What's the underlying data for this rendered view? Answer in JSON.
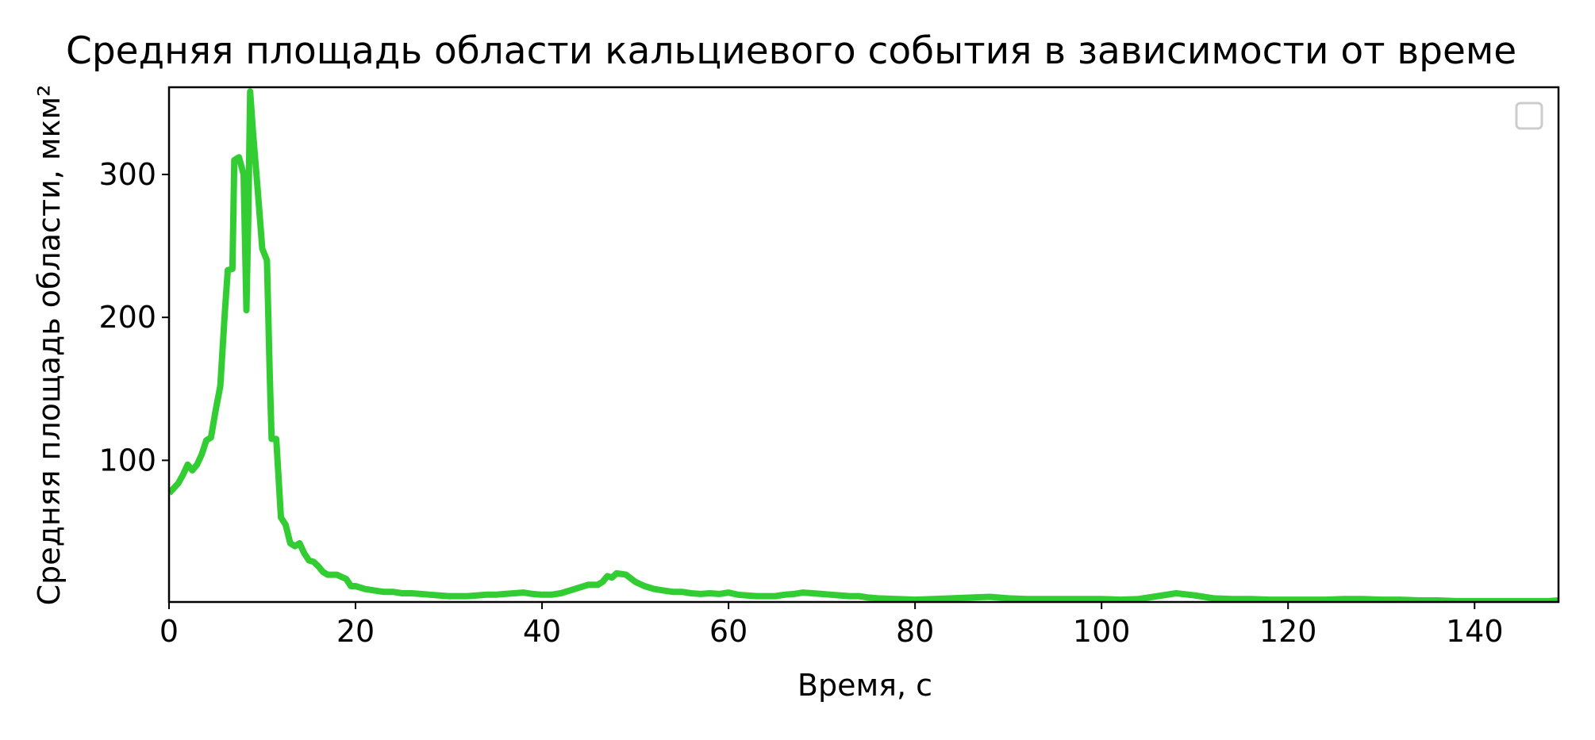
{
  "chart_data": {
    "type": "line",
    "title": "Средняя площадь области кальциевого события в зависимости от време",
    "x_label": "Время, с",
    "y_label": "Средняя площадь области, мкм²",
    "x": [
      0,
      1,
      1.5,
      2,
      2.5,
      3,
      3.5,
      4,
      4.5,
      5,
      5.5,
      6,
      6.3,
      6.8,
      7,
      7.5,
      8,
      8.3,
      8.5,
      8.7,
      9,
      9.5,
      10,
      10.5,
      10.8,
      11,
      11.5,
      12,
      12.5,
      13,
      13.5,
      14,
      14.5,
      15,
      15.5,
      16,
      16.5,
      17,
      18,
      19,
      19.5,
      20,
      21,
      22,
      23,
      24,
      25,
      26,
      27,
      28,
      29,
      30,
      31,
      32,
      33,
      34,
      35,
      36,
      37,
      38,
      39,
      40,
      41,
      42,
      43,
      44,
      45,
      46,
      46.5,
      47,
      47.5,
      48,
      49,
      50,
      51,
      52,
      53,
      54,
      55,
      56,
      57,
      58,
      59,
      60,
      61,
      62,
      63,
      64,
      65,
      66,
      67,
      68,
      69,
      70,
      71,
      72,
      73,
      74,
      75,
      76,
      78,
      80,
      82,
      84,
      86,
      88,
      90,
      92,
      94,
      96,
      98,
      100,
      102,
      104,
      106,
      108,
      110,
      112,
      114,
      116,
      118,
      120,
      122,
      124,
      126,
      128,
      130,
      132,
      134,
      136,
      138,
      140,
      142,
      144,
      146,
      148,
      149
    ],
    "series": [
      {
        "color": "#32cd32",
        "values": [
          77,
          84,
          90,
          97,
          93,
          97,
          104,
          114,
          116,
          135,
          152,
          205,
          233,
          234,
          310,
          312,
          300,
          205,
          270,
          358,
          330,
          290,
          248,
          240,
          160,
          115,
          115,
          60,
          55,
          42,
          40,
          42,
          35,
          30,
          29,
          26,
          22,
          20,
          20,
          17,
          12,
          12,
          10,
          9,
          8,
          8,
          7,
          7,
          6.5,
          6,
          5.5,
          5,
          5,
          5,
          5.5,
          6,
          6,
          6.5,
          7,
          7.5,
          6.5,
          6,
          6,
          7,
          9,
          11,
          13,
          13,
          15,
          19,
          18,
          21,
          20,
          15,
          12,
          10,
          9,
          8,
          8,
          7,
          6.5,
          7,
          6.5,
          7.5,
          6,
          5.5,
          5,
          5,
          5,
          6,
          6.5,
          7.5,
          7,
          6.5,
          6,
          5.5,
          5,
          5,
          4,
          3.5,
          3,
          2.5,
          3,
          3.5,
          4,
          4.5,
          3.5,
          3,
          3,
          3,
          3,
          3,
          2.5,
          3,
          5,
          7,
          5.5,
          3.5,
          3,
          3,
          2.5,
          2.5,
          2.5,
          2.5,
          3,
          3,
          2.5,
          2.5,
          2,
          2,
          1.5,
          1.5,
          1.5,
          1.5,
          1.5,
          1.5,
          2
        ]
      }
    ],
    "xlim": [
      0,
      149
    ],
    "ylim": [
      0.9,
      361
    ],
    "xticks": [
      0,
      20,
      40,
      60,
      80,
      100,
      120,
      140
    ],
    "yticks": [
      100,
      200,
      300
    ]
  }
}
